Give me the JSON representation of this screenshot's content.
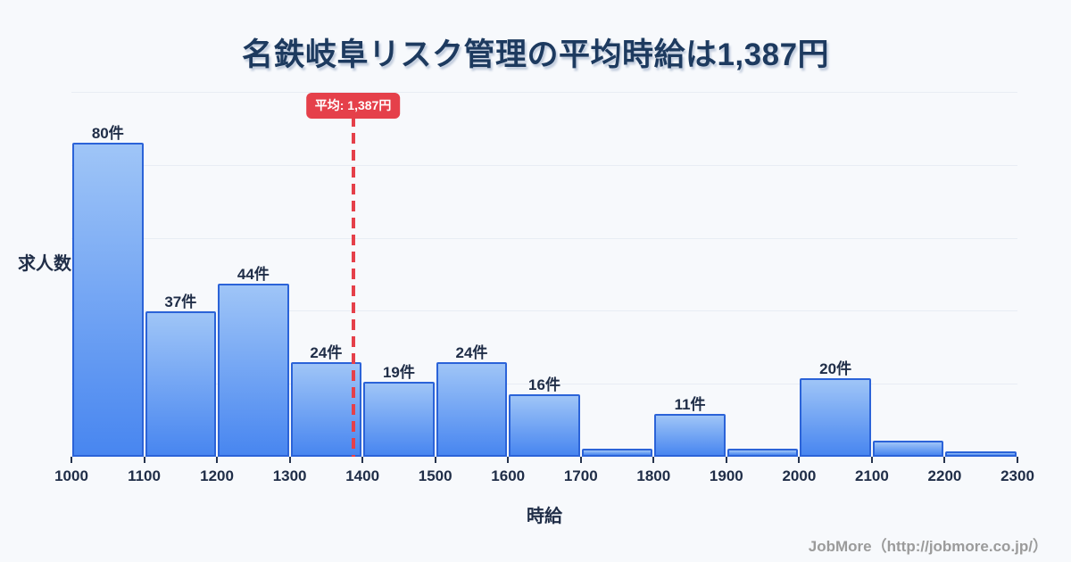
{
  "title": "名鉄岐阜リスク管理の平均時給は1,387円",
  "footer": "JobMore（http://jobmore.co.jp/）",
  "colors": {
    "background": "#f7f9fc",
    "title": "#1d3a5f",
    "text": "#202e48",
    "grid": "#e8edf4",
    "bar_fill_top": "#9fc5f7",
    "bar_fill_bottom": "#4886f0",
    "bar_border": "#2b63d8",
    "average": "#e5404a",
    "footer": "#9b9b9b"
  },
  "chart_data": {
    "type": "bar",
    "subtype": "histogram",
    "title": "名鉄岐阜リスク管理の平均時給は1,387円",
    "xlabel": "時給",
    "ylabel": "求人数",
    "x_ticks": [
      1000,
      1100,
      1200,
      1300,
      1400,
      1500,
      1600,
      1700,
      1800,
      1900,
      2000,
      2100,
      2200,
      2300
    ],
    "categories": [
      "1000-1100",
      "1100-1200",
      "1200-1300",
      "1300-1400",
      "1400-1500",
      "1500-1600",
      "1600-1700",
      "1700-1800",
      "1800-1900",
      "1900-2000",
      "2000-2100",
      "2100-2200",
      "2200-2300"
    ],
    "values": [
      80,
      37,
      44,
      24,
      19,
      24,
      16,
      2,
      11,
      2,
      20,
      4,
      1
    ],
    "bar_labels": [
      "80件",
      "37件",
      "44件",
      "24件",
      "19件",
      "24件",
      "16件",
      "",
      "11件",
      "",
      "20件",
      "",
      ""
    ],
    "average": 1387,
    "average_label": "平均: 1,387円",
    "xlim": [
      1000,
      2300
    ],
    "ylim": [
      0,
      93
    ],
    "grid": true,
    "grid_divisions": 5,
    "legend": "none"
  }
}
